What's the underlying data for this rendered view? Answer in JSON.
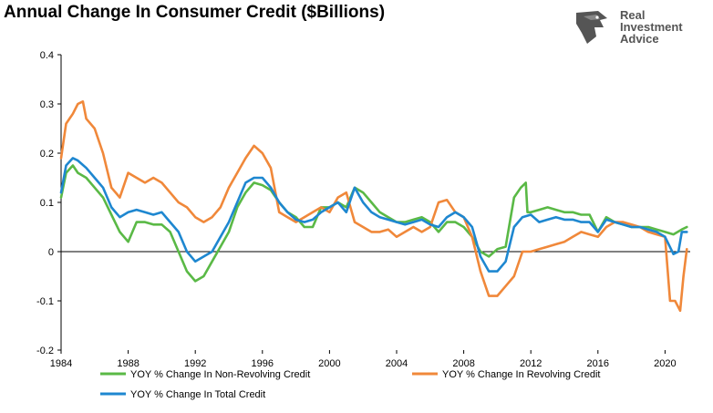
{
  "title": "Annual Change In Consumer Credit ($Billions)",
  "logo": {
    "line1": "Real",
    "line2": "Investment",
    "line3": "Advice",
    "icon": "eagle-head-icon"
  },
  "chart_data": {
    "type": "line",
    "title": "Annual Change In Consumer Credit ($Billions)",
    "xlabel": "",
    "ylabel": "",
    "xlim": [
      1984,
      2021.5
    ],
    "ylim": [
      -0.2,
      0.4
    ],
    "yticks": [
      -0.2,
      -0.1,
      0,
      0.1,
      0.2,
      0.3,
      0.4
    ],
    "ytick_labels": [
      "-0.2",
      "-0.1",
      "0",
      "0.1",
      "0.2",
      "0.3",
      "0.4"
    ],
    "xticks": [
      1984,
      1988,
      1992,
      1996,
      2000,
      2004,
      2008,
      2012,
      2016,
      2020
    ],
    "xtick_labels": [
      "1984",
      "1988",
      "1992",
      "1996",
      "2000",
      "2004",
      "2008",
      "2012",
      "2016",
      "2020"
    ],
    "grid": false,
    "legend": "bottom",
    "series": [
      {
        "name": "YOY % Change In Non-Revolving Credit",
        "color": "#5ab946",
        "x": [
          1984,
          1984.3,
          1984.7,
          1985,
          1985.5,
          1986,
          1986.5,
          1987,
          1987.5,
          1988,
          1988.5,
          1989,
          1989.5,
          1990,
          1990.5,
          1991,
          1991.5,
          1992,
          1992.5,
          1993,
          1993.5,
          1994,
          1994.5,
          1995,
          1995.5,
          1996,
          1996.5,
          1997,
          1997.5,
          1998,
          1998.5,
          1999,
          1999.5,
          2000,
          2000.5,
          2001,
          2001.5,
          2002,
          2002.5,
          2003,
          2003.5,
          2004,
          2004.5,
          2005,
          2005.5,
          2006,
          2006.5,
          2007,
          2007.5,
          2008,
          2008.5,
          2009,
          2009.5,
          2010,
          2010.5,
          2011,
          2011.4,
          2011.7,
          2011.8,
          2012,
          2012.5,
          2013,
          2013.5,
          2014,
          2014.5,
          2015,
          2015.5,
          2016,
          2016.5,
          2017,
          2017.5,
          2018,
          2018.5,
          2019,
          2019.5,
          2020,
          2020.5,
          2021,
          2021.3
        ],
        "y": [
          0.11,
          0.16,
          0.175,
          0.16,
          0.15,
          0.13,
          0.11,
          0.075,
          0.04,
          0.02,
          0.06,
          0.06,
          0.055,
          0.055,
          0.04,
          0.0,
          -0.04,
          -0.06,
          -0.05,
          -0.02,
          0.01,
          0.04,
          0.09,
          0.12,
          0.14,
          0.135,
          0.125,
          0.1,
          0.08,
          0.07,
          0.05,
          0.05,
          0.09,
          0.09,
          0.1,
          0.09,
          0.13,
          0.12,
          0.1,
          0.08,
          0.07,
          0.06,
          0.06,
          0.065,
          0.07,
          0.06,
          0.04,
          0.06,
          0.06,
          0.05,
          0.03,
          0.0,
          -0.01,
          0.005,
          0.01,
          0.11,
          0.13,
          0.14,
          0.08,
          0.08,
          0.085,
          0.09,
          0.085,
          0.08,
          0.08,
          0.075,
          0.075,
          0.04,
          0.07,
          0.06,
          0.055,
          0.05,
          0.05,
          0.05,
          0.045,
          0.04,
          0.035,
          0.045,
          0.05
        ]
      },
      {
        "name": "YOY % Change In Revolving Credit",
        "color": "#f0883a",
        "x": [
          1984,
          1984.3,
          1984.7,
          1985,
          1985.3,
          1985.5,
          1986,
          1986.5,
          1987,
          1987.5,
          1988,
          1988.5,
          1989,
          1989.5,
          1990,
          1990.5,
          1991,
          1991.5,
          1992,
          1992.5,
          1993,
          1993.5,
          1994,
          1994.5,
          1995,
          1995.5,
          1996,
          1996.5,
          1997,
          1997.5,
          1998,
          1998.5,
          1999,
          1999.5,
          2000,
          2000.5,
          2001,
          2001.5,
          2002,
          2002.5,
          2003,
          2003.5,
          2004,
          2004.5,
          2005,
          2005.5,
          2006,
          2006.5,
          2007,
          2007.5,
          2008,
          2008.5,
          2009,
          2009.5,
          2010,
          2010.5,
          2011,
          2011.5,
          2012,
          2012.5,
          2013,
          2013.5,
          2014,
          2014.5,
          2015,
          2015.5,
          2016,
          2016.5,
          2017,
          2017.5,
          2018,
          2018.5,
          2019,
          2019.5,
          2020,
          2020.3,
          2020.6,
          2020.9,
          2021.1,
          2021.3
        ],
        "y": [
          0.19,
          0.26,
          0.28,
          0.3,
          0.305,
          0.27,
          0.25,
          0.2,
          0.13,
          0.11,
          0.16,
          0.15,
          0.14,
          0.15,
          0.14,
          0.12,
          0.1,
          0.09,
          0.07,
          0.06,
          0.07,
          0.09,
          0.13,
          0.16,
          0.19,
          0.215,
          0.2,
          0.17,
          0.08,
          0.07,
          0.06,
          0.07,
          0.08,
          0.09,
          0.08,
          0.11,
          0.12,
          0.06,
          0.05,
          0.04,
          0.04,
          0.045,
          0.03,
          0.04,
          0.05,
          0.04,
          0.05,
          0.1,
          0.105,
          0.08,
          0.07,
          0.03,
          -0.04,
          -0.09,
          -0.09,
          -0.07,
          -0.05,
          0.0,
          0.0,
          0.005,
          0.01,
          0.015,
          0.02,
          0.03,
          0.04,
          0.035,
          0.03,
          0.05,
          0.06,
          0.06,
          0.055,
          0.05,
          0.04,
          0.035,
          0.03,
          -0.1,
          -0.1,
          -0.12,
          -0.05,
          0.005
        ]
      },
      {
        "name": "YOY % Change In Total Credit",
        "color": "#1e87d0",
        "x": [
          1984,
          1984.3,
          1984.7,
          1985,
          1985.5,
          1986,
          1986.5,
          1987,
          1987.5,
          1988,
          1988.5,
          1989,
          1989.5,
          1990,
          1990.5,
          1991,
          1991.5,
          1992,
          1992.5,
          1993,
          1993.5,
          1994,
          1994.5,
          1995,
          1995.5,
          1996,
          1996.5,
          1997,
          1997.5,
          1998,
          1998.5,
          1999,
          1999.5,
          2000,
          2000.5,
          2001,
          2001.5,
          2002,
          2002.5,
          2003,
          2003.5,
          2004,
          2004.5,
          2005,
          2005.5,
          2006,
          2006.5,
          2007,
          2007.5,
          2008,
          2008.5,
          2009,
          2009.5,
          2010,
          2010.5,
          2011,
          2011.5,
          2012,
          2012.5,
          2013,
          2013.5,
          2014,
          2014.5,
          2015,
          2015.5,
          2016,
          2016.5,
          2017,
          2017.5,
          2018,
          2018.5,
          2019,
          2019.5,
          2020,
          2020.5,
          2020.8,
          2021,
          2021.3
        ],
        "y": [
          0.12,
          0.175,
          0.19,
          0.185,
          0.17,
          0.15,
          0.13,
          0.09,
          0.07,
          0.08,
          0.085,
          0.08,
          0.075,
          0.08,
          0.06,
          0.04,
          0.0,
          -0.02,
          -0.01,
          0.0,
          0.03,
          0.06,
          0.1,
          0.14,
          0.15,
          0.15,
          0.13,
          0.1,
          0.08,
          0.065,
          0.06,
          0.065,
          0.08,
          0.09,
          0.1,
          0.08,
          0.13,
          0.1,
          0.08,
          0.07,
          0.065,
          0.06,
          0.055,
          0.06,
          0.065,
          0.055,
          0.05,
          0.07,
          0.08,
          0.07,
          0.05,
          -0.01,
          -0.04,
          -0.04,
          -0.02,
          0.05,
          0.07,
          0.075,
          0.06,
          0.065,
          0.07,
          0.065,
          0.065,
          0.06,
          0.06,
          0.04,
          0.065,
          0.06,
          0.055,
          0.05,
          0.05,
          0.045,
          0.04,
          0.03,
          -0.005,
          0.0,
          0.04,
          0.04
        ]
      }
    ]
  }
}
